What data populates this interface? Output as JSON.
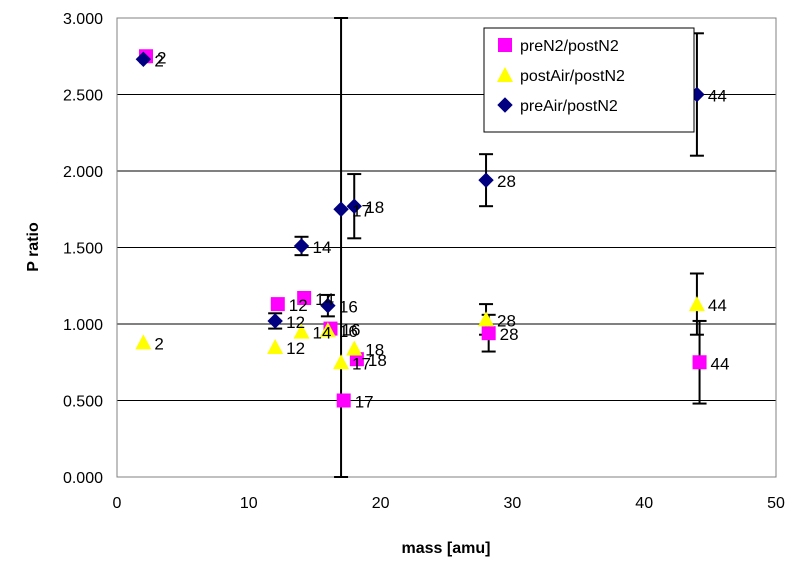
{
  "chart_data": {
    "type": "scatter",
    "xlabel": "mass [amu]",
    "ylabel": "P ratio",
    "xlim": [
      0,
      50
    ],
    "ylim": [
      0,
      3
    ],
    "x_ticks": [
      "0",
      "10",
      "20",
      "30",
      "40",
      "50"
    ],
    "y_ticks": [
      "0.000",
      "0.500",
      "1.000",
      "1.500",
      "2.000",
      "2.500",
      "3.000"
    ],
    "grid": "horizontal major gridlines",
    "legend_position": "top-right",
    "series": [
      {
        "name": "preN2/postN2",
        "marker": "square",
        "color": "#ff00ff",
        "points": [
          {
            "x": 2.2,
            "y": 2.75,
            "label": "2"
          },
          {
            "x": 12.2,
            "y": 1.13,
            "label": "12"
          },
          {
            "x": 14.2,
            "y": 1.17,
            "label": "14"
          },
          {
            "x": 16.2,
            "y": 0.97,
            "label": "16"
          },
          {
            "x": 17.2,
            "y": 0.5,
            "label": "17"
          },
          {
            "x": 18.2,
            "y": 0.77,
            "label": "18"
          },
          {
            "x": 28.2,
            "y": 0.94,
            "label": "28",
            "err": 0.12
          },
          {
            "x": 44.2,
            "y": 0.75,
            "label": "44",
            "err": 0.27
          }
        ]
      },
      {
        "name": "postAir/postN2",
        "marker": "triangle",
        "color": "#ffff00",
        "points": [
          {
            "x": 2,
            "y": 0.88,
            "label": "2"
          },
          {
            "x": 12,
            "y": 0.85,
            "label": "12"
          },
          {
            "x": 14,
            "y": 0.95,
            "label": "14"
          },
          {
            "x": 16,
            "y": 0.96,
            "label": "16"
          },
          {
            "x": 17,
            "y": 0.75,
            "label": "17"
          },
          {
            "x": 18,
            "y": 0.84,
            "label": "18"
          },
          {
            "x": 28,
            "y": 1.03,
            "label": "28",
            "err": 0.1
          },
          {
            "x": 44,
            "y": 1.13,
            "label": "44",
            "err": 0.2
          }
        ]
      },
      {
        "name": "preAir/postN2",
        "marker": "diamond",
        "color": "#000080",
        "points": [
          {
            "x": 2,
            "y": 2.73,
            "label": "2"
          },
          {
            "x": 12,
            "y": 1.02,
            "label": "12",
            "err": 0.05
          },
          {
            "x": 14,
            "y": 1.51,
            "label": "14",
            "err": 0.06
          },
          {
            "x": 16,
            "y": 1.12,
            "label": "16",
            "err": 0.07
          },
          {
            "x": 17,
            "y": 1.75,
            "label": "17",
            "err": 1.77
          },
          {
            "x": 18,
            "y": 1.77,
            "label": "18",
            "err": 0.21
          },
          {
            "x": 28,
            "y": 1.94,
            "label": "28",
            "err": 0.17
          },
          {
            "x": 44,
            "y": 2.5,
            "label": "44",
            "err": 0.4
          }
        ]
      }
    ]
  }
}
